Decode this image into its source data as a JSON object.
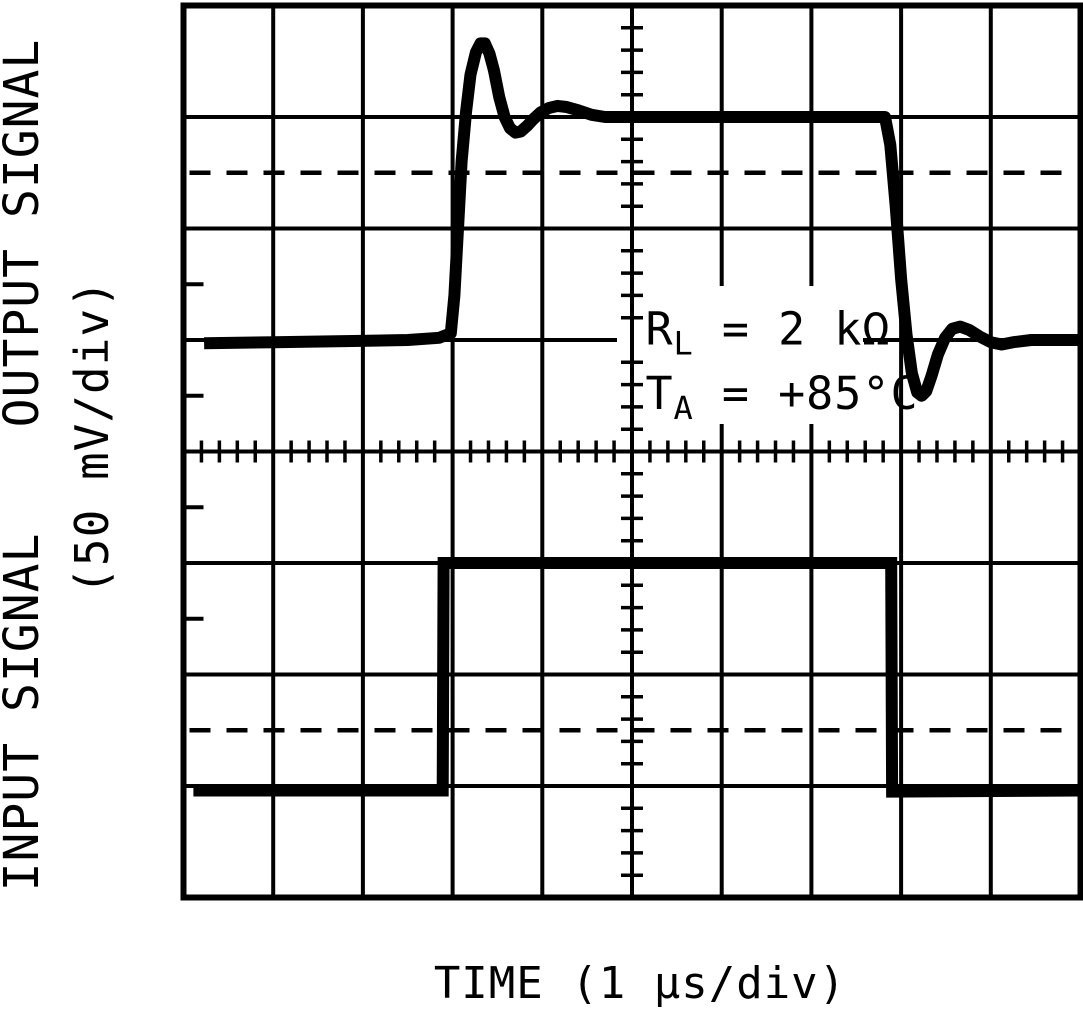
{
  "page": {
    "background": "#ffffff",
    "ink": "#000000",
    "description": "Oscilloscope photograph style figure: small-signal transient response"
  },
  "chart_data": {
    "type": "line",
    "title": "",
    "xlabel": "TIME (1 µs/div)",
    "ylabel_top": "OUTPUT SIGNAL",
    "ylabel_bottom": "INPUT SIGNAL",
    "ylabel_units": "(50 mV/div)",
    "x_divisions": 10,
    "y_divisions": 8,
    "x_scale_per_div": "1 µs",
    "y_scale_per_div": "50 mV",
    "grid": true,
    "legend_position": "none",
    "graticule": {
      "center_vline_xdiv": 5,
      "center_hline_ydiv": 4,
      "minor_tick_step_div": 0.2,
      "dashed_reference_lines_ydiv": [
        1.5,
        6.5
      ],
      "left_edge_half_ticks_ydiv": [
        2.5,
        3.5,
        4.5,
        5.5
      ]
    },
    "annotation": {
      "x_div": 5.15,
      "line1_y_div": 3.04,
      "line2_y_div": 3.62,
      "lines": [
        {
          "parts": [
            {
              "t": "R"
            },
            {
              "t": "L",
              "sub": true
            },
            {
              "t": " = 2 k"
            },
            {
              "t": "Ω"
            }
          ]
        },
        {
          "parts": [
            {
              "t": "T"
            },
            {
              "t": "A",
              "sub": true
            },
            {
              "t": " = +85°C"
            }
          ]
        }
      ],
      "plain_text": [
        "RL = 2 kΩ",
        "TA = +85°C"
      ]
    },
    "series": [
      {
        "name": "OUTPUT SIGNAL",
        "id": "output-trace",
        "corner": "smooth",
        "low_level_div": 3.0,
        "high_level_div": 1.0,
        "overshoot_peak_div": 0.34,
        "undershoot_trough_div": 3.5,
        "points_div": [
          [
            0.23,
            3.03
          ],
          [
            1.0,
            3.02
          ],
          [
            1.8,
            3.01
          ],
          [
            2.5,
            3.0
          ],
          [
            2.85,
            2.98
          ],
          [
            2.98,
            2.94
          ],
          [
            3.02,
            2.6
          ],
          [
            3.06,
            2.0
          ],
          [
            3.1,
            1.4
          ],
          [
            3.15,
            0.95
          ],
          [
            3.2,
            0.62
          ],
          [
            3.26,
            0.42
          ],
          [
            3.31,
            0.34
          ],
          [
            3.36,
            0.34
          ],
          [
            3.41,
            0.43
          ],
          [
            3.46,
            0.58
          ],
          [
            3.52,
            0.82
          ],
          [
            3.58,
            1.0
          ],
          [
            3.64,
            1.1
          ],
          [
            3.7,
            1.14
          ],
          [
            3.76,
            1.13
          ],
          [
            3.83,
            1.08
          ],
          [
            3.9,
            1.02
          ],
          [
            3.98,
            0.96
          ],
          [
            4.07,
            0.92
          ],
          [
            4.17,
            0.9
          ],
          [
            4.27,
            0.91
          ],
          [
            4.4,
            0.94
          ],
          [
            4.55,
            0.98
          ],
          [
            4.7,
            1.0
          ],
          [
            5.5,
            1.0
          ],
          [
            6.5,
            1.0
          ],
          [
            7.4,
            1.0
          ],
          [
            7.82,
            1.0
          ],
          [
            7.88,
            1.25
          ],
          [
            7.94,
            1.8
          ],
          [
            8.0,
            2.45
          ],
          [
            8.06,
            2.95
          ],
          [
            8.12,
            3.3
          ],
          [
            8.18,
            3.47
          ],
          [
            8.23,
            3.5
          ],
          [
            8.28,
            3.46
          ],
          [
            8.34,
            3.32
          ],
          [
            8.41,
            3.13
          ],
          [
            8.49,
            2.98
          ],
          [
            8.57,
            2.9
          ],
          [
            8.66,
            2.88
          ],
          [
            8.76,
            2.91
          ],
          [
            8.88,
            2.97
          ],
          [
            9.0,
            3.02
          ],
          [
            9.12,
            3.04
          ],
          [
            9.25,
            3.02
          ],
          [
            9.45,
            3.0
          ],
          [
            10,
            3.0
          ]
        ]
      },
      {
        "name": "INPUT SIGNAL",
        "id": "input-trace",
        "corner": "sharp",
        "low_level_div": 7.04,
        "high_level_div": 5.0,
        "points_div": [
          [
            0.11,
            7.04
          ],
          [
            2.89,
            7.04
          ],
          [
            2.9,
            5.0
          ],
          [
            7.89,
            5.0
          ],
          [
            7.9,
            7.05
          ],
          [
            10,
            7.04
          ]
        ]
      }
    ]
  }
}
